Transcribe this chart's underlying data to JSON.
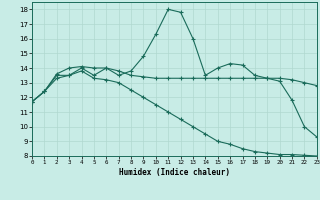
{
  "xlabel": "Humidex (Indice chaleur)",
  "bg_color": "#c8ece6",
  "grid_color": "#b0d8d0",
  "line_color": "#1a6b5a",
  "xlim": [
    0,
    23
  ],
  "ylim": [
    8,
    18.5
  ],
  "yticks": [
    8,
    9,
    10,
    11,
    12,
    13,
    14,
    15,
    16,
    17,
    18
  ],
  "xticks": [
    0,
    1,
    2,
    3,
    4,
    5,
    6,
    7,
    8,
    9,
    10,
    11,
    12,
    13,
    14,
    15,
    16,
    17,
    18,
    19,
    20,
    21,
    22,
    23
  ],
  "line1_x": [
    0,
    1,
    2,
    3,
    4,
    5,
    6,
    7,
    8,
    9,
    10,
    11,
    12,
    13,
    14,
    15,
    16,
    17,
    18,
    19,
    20,
    21,
    22,
    23
  ],
  "line1_y": [
    11.7,
    12.4,
    13.5,
    13.5,
    14.0,
    13.5,
    14.0,
    13.5,
    13.8,
    14.8,
    16.3,
    18.0,
    17.8,
    16.0,
    13.5,
    14.0,
    14.3,
    14.2,
    13.5,
    13.3,
    13.1,
    11.8,
    10.0,
    9.3
  ],
  "line2_x": [
    0,
    1,
    2,
    3,
    4,
    5,
    6,
    7,
    8,
    9,
    10,
    11,
    12,
    13,
    14,
    15,
    16,
    17,
    18,
    19,
    20,
    21,
    22,
    23
  ],
  "line2_y": [
    11.7,
    12.4,
    13.6,
    14.0,
    14.1,
    14.0,
    14.0,
    13.8,
    13.5,
    13.4,
    13.3,
    13.3,
    13.3,
    13.3,
    13.3,
    13.3,
    13.3,
    13.3,
    13.3,
    13.3,
    13.3,
    13.2,
    13.0,
    12.8
  ],
  "line3_x": [
    0,
    1,
    2,
    3,
    4,
    5,
    6,
    7,
    8,
    9,
    10,
    11,
    12,
    13,
    14,
    15,
    16,
    17,
    18,
    19,
    20,
    21,
    22,
    23
  ],
  "line3_y": [
    11.7,
    12.4,
    13.3,
    13.5,
    13.8,
    13.3,
    13.2,
    13.0,
    12.5,
    12.0,
    11.5,
    11.0,
    10.5,
    10.0,
    9.5,
    9.0,
    8.8,
    8.5,
    8.3,
    8.2,
    8.1,
    8.1,
    8.05,
    8.0
  ]
}
